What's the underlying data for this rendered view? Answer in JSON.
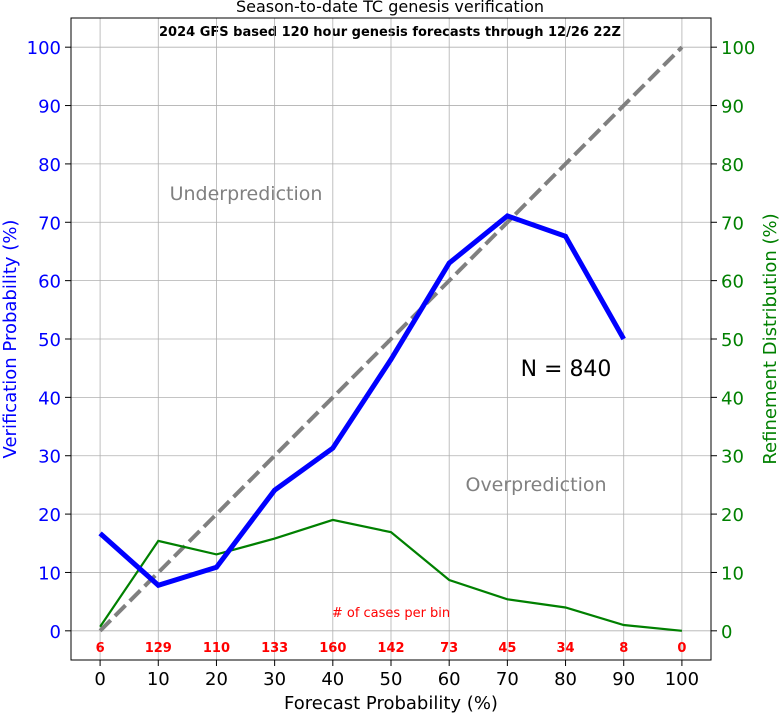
{
  "chart_data": {
    "type": "line",
    "title": "Season-to-date TC genesis verification",
    "subtitle": "2024 GFS based 120 hour genesis forecasts through 12/26 22Z",
    "xlabel": "Forecast Probability (%)",
    "ylabel_left": "Verification Probability (%)",
    "ylabel_right": "Refinement Distribution (%)",
    "x": [
      0,
      10,
      20,
      30,
      40,
      50,
      60,
      70,
      80,
      90,
      100
    ],
    "xlim": [
      -5,
      105
    ],
    "ylim": [
      -5,
      105
    ],
    "grid": true,
    "series": [
      {
        "axis": "left",
        "color": "#0000ff",
        "style": "solid",
        "values": [
          16.7,
          7.8,
          10.9,
          24.1,
          31.3,
          46.5,
          63.0,
          71.1,
          67.6,
          50.0,
          null
        ]
      },
      {
        "axis": "right",
        "color": "#008000",
        "style": "solid",
        "values": [
          0.7,
          15.4,
          13.1,
          15.8,
          19.0,
          16.9,
          8.7,
          5.4,
          4.0,
          1.0,
          0.0
        ]
      },
      {
        "axis": "left",
        "color": "#808080",
        "style": "dashed",
        "values": [
          0,
          10,
          20,
          30,
          40,
          50,
          60,
          70,
          80,
          90,
          100
        ]
      }
    ],
    "annotations": {
      "underprediction": "Underprediction",
      "overprediction": "Overprediction",
      "n_label": "N = 840",
      "cases_label": "# of cases per bin"
    },
    "case_counts": [
      "6",
      "129",
      "110",
      "133",
      "160",
      "142",
      "73",
      "45",
      "34",
      "8",
      "0"
    ],
    "x_ticks": [
      "0",
      "10",
      "20",
      "30",
      "40",
      "50",
      "60",
      "70",
      "80",
      "90",
      "100"
    ],
    "y_ticks": [
      "0",
      "10",
      "20",
      "30",
      "40",
      "50",
      "60",
      "70",
      "80",
      "90",
      "100"
    ],
    "colors": {
      "left_axis": "#0000ff",
      "right_axis": "#008000",
      "annotation": "#808080",
      "counts": "#ff0000"
    }
  }
}
